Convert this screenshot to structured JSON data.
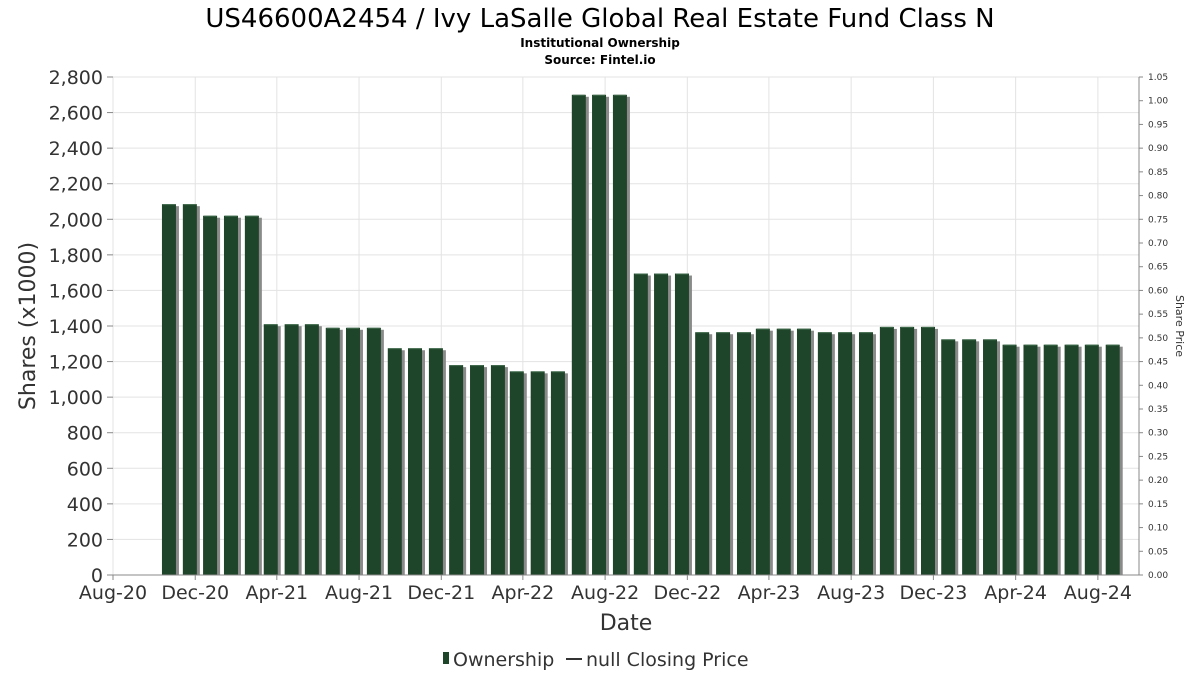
{
  "chart_data": {
    "type": "bar",
    "title": "US46600A2454 / Ivy LaSalle Global Real Estate Fund Class N",
    "subtitle_lines": [
      "Institutional Ownership",
      "Source: Fintel.io"
    ],
    "xlabel": "Date",
    "ylabel": "Shares (x1000)",
    "y2label": "Share Price",
    "ylim": [
      0,
      2800
    ],
    "y2lim": [
      0,
      1.05
    ],
    "xlim": [
      "2020-08-01",
      "2024-10-01"
    ],
    "yticks": [
      "0",
      "200",
      "400",
      "600",
      "800",
      "1,000",
      "1,200",
      "1,400",
      "1,600",
      "1,800",
      "2,000",
      "2,200",
      "2,400",
      "2,600",
      "2,800"
    ],
    "y2ticks": [
      "0.00",
      "0.05",
      "0.10",
      "0.15",
      "0.20",
      "0.25",
      "0.30",
      "0.35",
      "0.40",
      "0.45",
      "0.50",
      "0.55",
      "0.60",
      "0.65",
      "0.70",
      "0.75",
      "0.80",
      "0.85",
      "0.90",
      "0.95",
      "1.00",
      "1.05"
    ],
    "xticks": [
      {
        "label": "Aug-20",
        "date": "2020-08-01"
      },
      {
        "label": "Dec-20",
        "date": "2020-12-01"
      },
      {
        "label": "Apr-21",
        "date": "2021-04-01"
      },
      {
        "label": "Aug-21",
        "date": "2021-08-01"
      },
      {
        "label": "Dec-21",
        "date": "2021-12-01"
      },
      {
        "label": "Apr-22",
        "date": "2022-04-01"
      },
      {
        "label": "Aug-22",
        "date": "2022-08-01"
      },
      {
        "label": "Dec-22",
        "date": "2022-12-01"
      },
      {
        "label": "Apr-23",
        "date": "2023-04-01"
      },
      {
        "label": "Aug-23",
        "date": "2023-08-01"
      },
      {
        "label": "Dec-23",
        "date": "2023-12-01"
      },
      {
        "label": "Apr-24",
        "date": "2024-04-01"
      },
      {
        "label": "Aug-24",
        "date": "2024-08-01"
      }
    ],
    "grid": true,
    "legend_position": "bottom-center",
    "series": [
      {
        "name": "Ownership",
        "color": "#1e4429",
        "shadow_color": "#8a8a8a",
        "dates": [
          "2020-10-23",
          "2020-11-23",
          "2020-12-23",
          "2021-01-23",
          "2021-02-23",
          "2021-03-23",
          "2021-04-23",
          "2021-05-23",
          "2021-06-23",
          "2021-07-23",
          "2021-08-23",
          "2021-09-23",
          "2021-10-23",
          "2021-11-23",
          "2021-12-23",
          "2022-01-23",
          "2022-02-23",
          "2022-03-23",
          "2022-04-23",
          "2022-05-23",
          "2022-06-23",
          "2022-07-23",
          "2022-08-23",
          "2022-09-23",
          "2022-10-23",
          "2022-11-23",
          "2022-12-23",
          "2023-01-23",
          "2023-02-23",
          "2023-03-23",
          "2023-04-23",
          "2023-05-23",
          "2023-06-23",
          "2023-07-23",
          "2023-08-23",
          "2023-09-23",
          "2023-10-23",
          "2023-11-23",
          "2023-12-23",
          "2024-01-23",
          "2024-02-23",
          "2024-03-23",
          "2024-04-23",
          "2024-05-23",
          "2024-06-23",
          "2024-07-23",
          "2024-08-23"
        ],
        "values": [
          2085,
          2085,
          2020,
          2020,
          2020,
          1410,
          1410,
          1410,
          1390,
          1390,
          1390,
          1275,
          1275,
          1275,
          1180,
          1180,
          1180,
          1145,
          1145,
          1145,
          2700,
          2700,
          2700,
          1695,
          1695,
          1695,
          1365,
          1365,
          1365,
          1385,
          1385,
          1385,
          1365,
          1365,
          1365,
          1395,
          1395,
          1395,
          1325,
          1325,
          1325,
          1295,
          1295,
          1295,
          1295,
          1295,
          1295
        ]
      },
      {
        "name": "null Closing Price",
        "color": "#333333",
        "values": []
      }
    ]
  }
}
